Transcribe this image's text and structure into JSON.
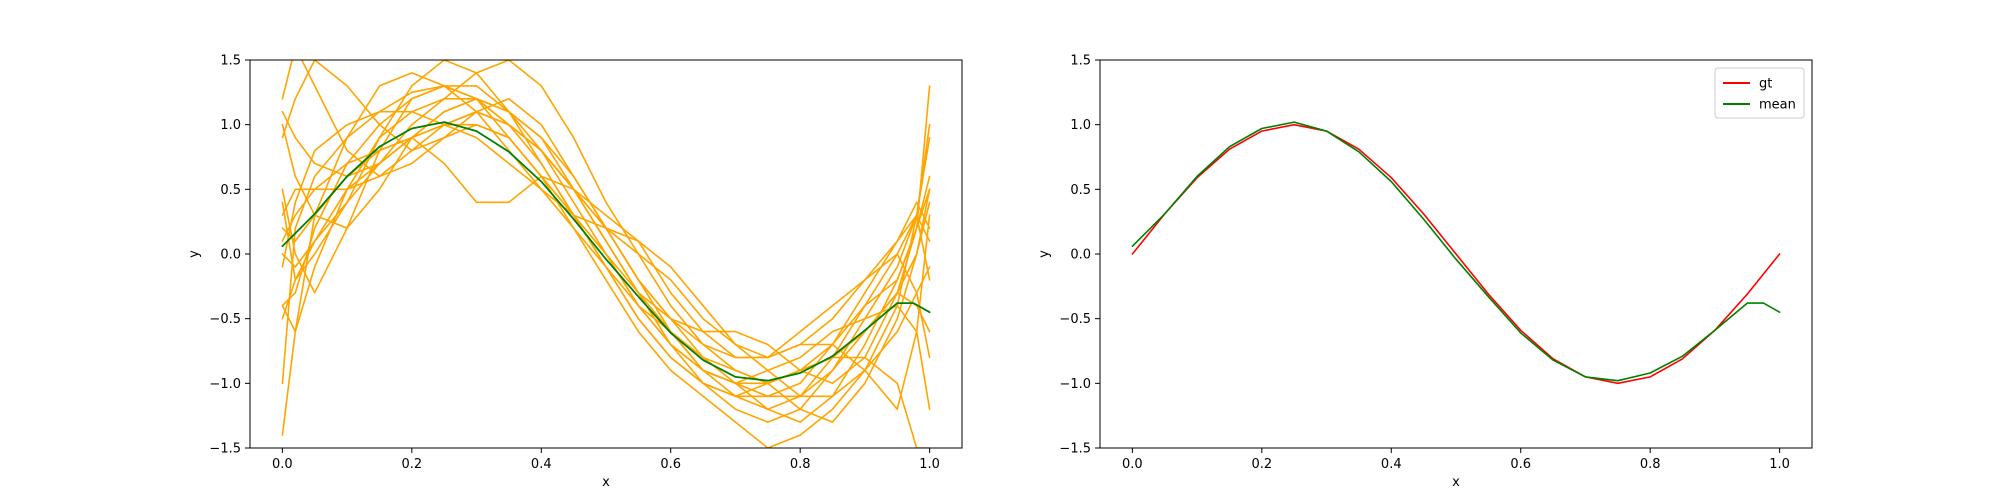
{
  "chart_data": [
    {
      "type": "line",
      "xlabel": "x",
      "ylabel": "y",
      "xlim": [
        -0.05,
        1.05
      ],
      "ylim": [
        -1.5,
        1.5
      ],
      "xticks": [
        "0.0",
        "0.2",
        "0.4",
        "0.6",
        "0.8",
        "1.0"
      ],
      "yticks": [
        "−1.5",
        "−1.0",
        "−0.5",
        "0.0",
        "0.5",
        "1.0",
        "1.5"
      ],
      "legend": null,
      "series": [
        {
          "color": "#ffa500",
          "x": [
            0.0,
            0.02,
            0.05,
            0.1,
            0.15,
            0.2,
            0.25,
            0.3,
            0.35,
            0.4,
            0.45,
            0.5,
            0.55,
            0.6,
            0.65,
            0.7,
            0.75,
            0.8,
            0.85,
            0.9,
            0.95,
            0.98,
            1.0
          ],
          "y": [
            -1.0,
            0.2,
            0.6,
            0.9,
            1.1,
            1.25,
            1.3,
            1.2,
            1.0,
            0.8,
            0.5,
            0.1,
            -0.3,
            -0.6,
            -0.9,
            -1.1,
            -1.2,
            -1.1,
            -0.8,
            -0.4,
            0.0,
            0.3,
            -0.2
          ]
        },
        {
          "color": "#ffa500",
          "x": [
            0.0,
            0.02,
            0.05,
            0.1,
            0.15,
            0.2,
            0.25,
            0.3,
            0.35,
            0.4,
            0.45,
            0.5,
            0.55,
            0.6,
            0.65,
            0.7,
            0.75,
            0.8,
            0.85,
            0.9,
            0.95,
            0.98,
            1.0
          ],
          "y": [
            0.4,
            -0.2,
            0.1,
            0.5,
            0.7,
            0.9,
            1.0,
            1.1,
            1.0,
            0.8,
            0.5,
            0.2,
            -0.2,
            -0.6,
            -0.9,
            -1.0,
            -1.0,
            -0.9,
            -0.7,
            -0.4,
            -0.2,
            0.2,
            1.3
          ]
        },
        {
          "color": "#ffa500",
          "x": [
            0.0,
            0.02,
            0.05,
            0.1,
            0.15,
            0.2,
            0.25,
            0.3,
            0.35,
            0.4,
            0.45,
            0.5,
            0.55,
            0.6,
            0.65,
            0.7,
            0.75,
            0.8,
            0.85,
            0.9,
            0.95,
            0.98,
            1.0
          ],
          "y": [
            1.2,
            1.6,
            1.3,
            0.8,
            0.6,
            0.7,
            0.9,
            1.0,
            0.9,
            0.6,
            0.3,
            0.0,
            -0.4,
            -0.7,
            -0.9,
            -1.0,
            -0.9,
            -0.8,
            -0.6,
            -0.5,
            -0.4,
            -0.6,
            -1.2
          ]
        },
        {
          "color": "#ffa500",
          "x": [
            0.0,
            0.02,
            0.05,
            0.1,
            0.15,
            0.2,
            0.25,
            0.3,
            0.35,
            0.4,
            0.45,
            0.5,
            0.55,
            0.6,
            0.65,
            0.7,
            0.75,
            0.8,
            0.85,
            0.9,
            0.95,
            0.98,
            1.0
          ],
          "y": [
            -0.4,
            -0.3,
            0.2,
            0.7,
            1.0,
            1.2,
            1.3,
            1.3,
            1.1,
            0.9,
            0.6,
            0.2,
            -0.2,
            -0.5,
            -0.8,
            -1.0,
            -1.2,
            -1.3,
            -1.1,
            -0.7,
            -0.2,
            0.2,
            0.6
          ]
        },
        {
          "color": "#ffa500",
          "x": [
            0.0,
            0.02,
            0.05,
            0.1,
            0.15,
            0.2,
            0.25,
            0.3,
            0.35,
            0.4,
            0.45,
            0.5,
            0.55,
            0.6,
            0.65,
            0.7,
            0.75,
            0.8,
            0.85,
            0.9,
            0.95,
            0.98,
            1.0
          ],
          "y": [
            0.0,
            -0.1,
            0.1,
            0.4,
            0.7,
            1.0,
            1.2,
            1.4,
            1.5,
            1.3,
            0.9,
            0.4,
            0.0,
            -0.4,
            -0.7,
            -0.9,
            -1.0,
            -0.9,
            -0.8,
            -0.6,
            -0.3,
            0.0,
            0.4
          ]
        },
        {
          "color": "#ffa500",
          "x": [
            0.0,
            0.02,
            0.05,
            0.1,
            0.15,
            0.2,
            0.25,
            0.3,
            0.35,
            0.4,
            0.45,
            0.5,
            0.55,
            0.6,
            0.65,
            0.7,
            0.75,
            0.8,
            0.85,
            0.9,
            0.95,
            0.98,
            1.0
          ],
          "y": [
            0.3,
            0.5,
            0.5,
            0.5,
            0.6,
            0.8,
            1.0,
            1.1,
            1.0,
            0.7,
            0.3,
            -0.1,
            -0.5,
            -0.8,
            -1.0,
            -1.1,
            -1.1,
            -1.0,
            -0.7,
            -0.3,
            0.1,
            0.4,
            0.2
          ]
        },
        {
          "color": "#ffa500",
          "x": [
            0.0,
            0.02,
            0.05,
            0.1,
            0.15,
            0.2,
            0.25,
            0.3,
            0.35,
            0.4,
            0.45,
            0.5,
            0.55,
            0.6,
            0.65,
            0.7,
            0.75,
            0.8,
            0.85,
            0.9,
            0.95,
            0.98,
            1.0
          ],
          "y": [
            -1.4,
            -0.6,
            0.3,
            0.9,
            1.3,
            1.4,
            1.3,
            1.1,
            0.8,
            0.5,
            0.2,
            -0.1,
            -0.4,
            -0.6,
            -0.8,
            -0.9,
            -1.0,
            -1.2,
            -1.3,
            -1.0,
            -0.5,
            0.0,
            0.5
          ]
        },
        {
          "color": "#ffa500",
          "x": [
            0.0,
            0.02,
            0.05,
            0.1,
            0.15,
            0.2,
            0.25,
            0.3,
            0.35,
            0.4,
            0.45,
            0.5,
            0.55,
            0.6,
            0.65,
            0.7,
            0.75,
            0.8,
            0.85,
            0.9,
            0.95,
            0.98,
            1.0
          ],
          "y": [
            1.0,
            0.6,
            0.3,
            0.2,
            0.5,
            0.9,
            1.1,
            1.2,
            1.1,
            0.9,
            0.5,
            0.1,
            -0.3,
            -0.7,
            -1.0,
            -1.2,
            -1.3,
            -1.2,
            -0.9,
            -0.5,
            -0.1,
            0.3,
            0.9
          ]
        },
        {
          "color": "#ffa500",
          "x": [
            0.0,
            0.02,
            0.05,
            0.1,
            0.15,
            0.2,
            0.25,
            0.3,
            0.35,
            0.4,
            0.45,
            0.5,
            0.55,
            0.6,
            0.65,
            0.7,
            0.75,
            0.8,
            0.85,
            0.9,
            0.95,
            0.98,
            1.0
          ],
          "y": [
            0.2,
            0.1,
            0.3,
            0.6,
            0.8,
            0.9,
            0.7,
            0.4,
            0.4,
            0.6,
            0.5,
            0.3,
            0.1,
            -0.3,
            -0.6,
            -0.8,
            -0.8,
            -0.6,
            -0.4,
            -0.2,
            0.0,
            -0.3,
            -0.8
          ]
        },
        {
          "color": "#ffa500",
          "x": [
            0.0,
            0.02,
            0.05,
            0.1,
            0.15,
            0.2,
            0.25,
            0.3,
            0.35,
            0.4,
            0.45,
            0.5,
            0.55,
            0.6,
            0.65,
            0.7,
            0.75,
            0.8,
            0.85,
            0.9,
            0.95,
            0.98,
            1.0
          ],
          "y": [
            -0.5,
            -0.2,
            0.0,
            0.4,
            0.9,
            1.3,
            1.5,
            1.4,
            1.1,
            0.7,
            0.3,
            -0.1,
            -0.5,
            -0.8,
            -1.0,
            -1.1,
            -1.0,
            -0.9,
            -0.8,
            -0.8,
            -1.0,
            -1.5,
            -1.5
          ]
        },
        {
          "color": "#ffa500",
          "x": [
            0.0,
            0.02,
            0.05,
            0.1,
            0.15,
            0.2,
            0.25,
            0.3,
            0.35,
            0.4,
            0.45,
            0.5,
            0.55,
            0.6,
            0.65,
            0.7,
            0.75,
            0.8,
            0.85,
            0.9,
            0.95,
            0.98,
            1.0
          ],
          "y": [
            0.1,
            0.3,
            0.5,
            0.7,
            0.8,
            0.9,
            1.0,
            1.0,
            0.9,
            0.6,
            0.2,
            -0.2,
            -0.6,
            -0.9,
            -1.1,
            -1.3,
            -1.5,
            -1.4,
            -1.2,
            -0.9,
            -0.4,
            0.3,
            1.0
          ]
        },
        {
          "color": "#ffa500",
          "x": [
            0.0,
            0.02,
            0.05,
            0.1,
            0.15,
            0.2,
            0.25,
            0.3,
            0.35,
            0.4,
            0.45,
            0.5,
            0.55,
            0.6,
            0.65,
            0.7,
            0.75,
            0.8,
            0.85,
            0.9,
            0.95,
            0.98,
            1.0
          ],
          "y": [
            -0.4,
            -0.6,
            -0.1,
            0.5,
            0.9,
            1.1,
            1.2,
            1.2,
            1.0,
            0.8,
            0.5,
            0.2,
            0.0,
            -0.2,
            -0.5,
            -0.7,
            -0.8,
            -0.7,
            -0.5,
            -0.2,
            0.1,
            0.3,
            0.1
          ]
        },
        {
          "color": "#ffa500",
          "x": [
            0.0,
            0.02,
            0.05,
            0.1,
            0.15,
            0.2,
            0.25,
            0.3,
            0.35,
            0.4,
            0.45,
            0.5,
            0.55,
            0.6,
            0.65,
            0.7,
            0.75,
            0.8,
            0.85,
            0.9,
            0.95,
            0.98,
            1.0
          ],
          "y": [
            0.9,
            1.2,
            1.5,
            1.3,
            1.0,
            0.8,
            0.9,
            1.1,
            1.2,
            1.0,
            0.6,
            0.2,
            -0.2,
            -0.5,
            -0.7,
            -0.8,
            -0.8,
            -0.7,
            -0.7,
            -0.9,
            -1.2,
            -0.6,
            0.3
          ]
        },
        {
          "color": "#ffa500",
          "x": [
            0.0,
            0.02,
            0.05,
            0.1,
            0.15,
            0.2,
            0.25,
            0.3,
            0.35,
            0.4,
            0.45,
            0.5,
            0.55,
            0.6,
            0.65,
            0.7,
            0.75,
            0.8,
            0.85,
            0.9,
            0.95,
            0.98,
            1.0
          ],
          "y": [
            -0.1,
            0.4,
            0.8,
            1.0,
            1.1,
            1.1,
            1.0,
            0.9,
            0.7,
            0.5,
            0.3,
            0.2,
            0.1,
            -0.1,
            -0.4,
            -0.7,
            -0.9,
            -1.1,
            -1.1,
            -0.9,
            -0.6,
            -0.3,
            -0.1
          ]
        },
        {
          "color": "#ffa500",
          "x": [
            0.0,
            0.02,
            0.05,
            0.1,
            0.15,
            0.2,
            0.25,
            0.3,
            0.35,
            0.4,
            0.45,
            0.5,
            0.55,
            0.6,
            0.65,
            0.7,
            0.75,
            0.8,
            0.85,
            0.9,
            0.95,
            0.98,
            1.0
          ],
          "y": [
            0.5,
            0.0,
            -0.3,
            0.2,
            0.8,
            1.2,
            1.3,
            1.2,
            0.9,
            0.6,
            0.3,
            0.0,
            -0.3,
            -0.5,
            -0.6,
            -0.6,
            -0.7,
            -0.9,
            -1.0,
            -0.8,
            -0.3,
            0.2,
            0.5
          ]
        },
        {
          "color": "#ffa500",
          "x": [
            0.0,
            0.02,
            0.05,
            0.1,
            0.15,
            0.2,
            0.25,
            0.3,
            0.35,
            0.4,
            0.45,
            0.5,
            0.55,
            0.6,
            0.65,
            0.7,
            0.75,
            0.8,
            0.85,
            0.9,
            0.95,
            0.98,
            1.0
          ],
          "y": [
            1.1,
            0.9,
            0.7,
            0.6,
            0.7,
            0.9,
            1.1,
            1.2,
            1.1,
            0.8,
            0.4,
            0.0,
            -0.4,
            -0.7,
            -0.9,
            -1.0,
            -1.1,
            -1.1,
            -0.9,
            -0.6,
            -0.3,
            -0.4,
            -0.6
          ]
        }
      ],
      "mean": {
        "name": "mean",
        "color": "#008000",
        "x": [
          0.0,
          0.05,
          0.1,
          0.15,
          0.2,
          0.25,
          0.3,
          0.35,
          0.4,
          0.45,
          0.5,
          0.55,
          0.6,
          0.65,
          0.7,
          0.75,
          0.8,
          0.85,
          0.9,
          0.95,
          0.975,
          1.0
        ],
        "y": [
          0.06,
          0.31,
          0.6,
          0.83,
          0.97,
          1.02,
          0.95,
          0.79,
          0.56,
          0.27,
          -0.04,
          -0.33,
          -0.61,
          -0.82,
          -0.95,
          -0.98,
          -0.92,
          -0.79,
          -0.59,
          -0.38,
          -0.38,
          -0.45
        ]
      }
    },
    {
      "type": "line",
      "xlabel": "x",
      "ylabel": "y",
      "xlim": [
        -0.05,
        1.05
      ],
      "ylim": [
        -1.5,
        1.5
      ],
      "xticks": [
        "0.0",
        "0.2",
        "0.4",
        "0.6",
        "0.8",
        "1.0"
      ],
      "yticks": [
        "−1.5",
        "−1.0",
        "−0.5",
        "0.0",
        "0.5",
        "1.0",
        "1.5"
      ],
      "legend": "top-right",
      "series": [
        {
          "name": "gt",
          "color": "#ff0000",
          "x": [
            0.0,
            0.05,
            0.1,
            0.15,
            0.2,
            0.25,
            0.3,
            0.35,
            0.4,
            0.45,
            0.5,
            0.55,
            0.6,
            0.65,
            0.7,
            0.75,
            0.8,
            0.85,
            0.9,
            0.95,
            1.0
          ],
          "y": [
            0.0,
            0.31,
            0.59,
            0.81,
            0.95,
            1.0,
            0.95,
            0.81,
            0.59,
            0.31,
            0.0,
            -0.31,
            -0.59,
            -0.81,
            -0.95,
            -1.0,
            -0.95,
            -0.81,
            -0.59,
            -0.31,
            0.0
          ]
        },
        {
          "name": "mean",
          "color": "#008000",
          "x": [
            0.0,
            0.05,
            0.1,
            0.15,
            0.2,
            0.25,
            0.3,
            0.35,
            0.4,
            0.45,
            0.5,
            0.55,
            0.6,
            0.65,
            0.7,
            0.75,
            0.8,
            0.85,
            0.9,
            0.95,
            0.975,
            1.0
          ],
          "y": [
            0.06,
            0.31,
            0.6,
            0.83,
            0.97,
            1.02,
            0.95,
            0.79,
            0.56,
            0.27,
            -0.04,
            -0.33,
            -0.61,
            -0.82,
            -0.95,
            -0.98,
            -0.92,
            -0.79,
            -0.59,
            -0.38,
            -0.38,
            -0.45
          ]
        }
      ]
    }
  ]
}
